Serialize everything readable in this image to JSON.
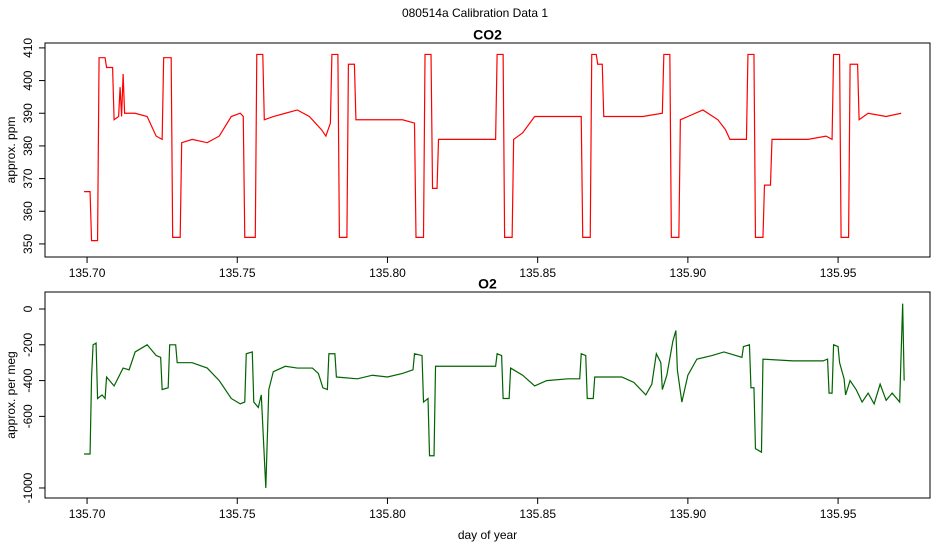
{
  "title": "080514a   Calibration Data 1",
  "chart_data": [
    {
      "type": "line",
      "title": "CO2",
      "ylabel": "approx. ppm",
      "xlim": [
        135.686,
        135.9806
      ],
      "ylim": [
        346.0,
        411.5
      ],
      "xticks": [
        {
          "value": 135.7,
          "label": "135.70"
        },
        135.75,
        {
          "value": 135.8,
          "label": "135.80"
        },
        135.85,
        {
          "value": 135.9,
          "label": "135.90"
        },
        135.95
      ],
      "yticks": [
        350,
        360,
        370,
        380,
        390,
        400,
        410
      ],
      "series": [
        {
          "name": "CO2",
          "color": "#ff0000",
          "x": [
            135.699,
            135.701,
            135.7015,
            135.7035,
            135.704,
            135.706,
            135.7065,
            135.7085,
            135.709,
            135.7105,
            135.711,
            135.7115,
            135.712,
            135.7125,
            135.716,
            135.72,
            135.723,
            135.725,
            135.7255,
            135.728,
            135.7285,
            135.731,
            135.7315,
            135.735,
            135.74,
            135.744,
            135.748,
            135.751,
            135.752,
            135.7525,
            135.756,
            135.7565,
            135.7585,
            135.759,
            135.762,
            135.766,
            135.77,
            135.774,
            135.778,
            135.7795,
            135.781,
            135.7815,
            135.7835,
            135.784,
            135.7865,
            135.787,
            135.789,
            135.7895,
            135.795,
            135.805,
            135.809,
            135.8095,
            135.812,
            135.8125,
            135.8145,
            135.815,
            135.8165,
            135.817,
            135.825,
            135.836,
            135.8365,
            135.8385,
            135.839,
            135.8415,
            135.842,
            135.845,
            135.849,
            135.86,
            135.8645,
            135.865,
            135.8675,
            135.868,
            135.8695,
            135.87,
            135.8715,
            135.872,
            135.885,
            135.8915,
            135.892,
            135.894,
            135.8945,
            135.897,
            135.8975,
            135.9,
            135.905,
            135.91,
            135.9125,
            135.914,
            135.9195,
            135.92,
            135.922,
            135.9225,
            135.925,
            135.9255,
            135.9275,
            135.928,
            135.94,
            135.946,
            135.948,
            135.9485,
            135.9505,
            135.951,
            135.9535,
            135.954,
            135.9565,
            135.957,
            135.96,
            135.966,
            135.971
          ],
          "values": [
            366,
            366,
            351,
            351,
            407,
            407,
            404,
            404,
            388,
            389,
            398,
            389,
            402,
            390,
            390,
            389,
            383,
            382,
            407,
            407,
            352,
            352,
            381,
            382,
            381,
            383,
            389,
            390,
            389,
            352,
            352,
            408,
            408,
            388,
            389,
            390,
            391,
            389,
            385,
            383,
            387,
            408,
            408,
            352,
            352,
            405,
            405,
            388,
            388,
            388,
            387,
            352,
            352,
            408,
            408,
            367,
            367,
            382,
            382,
            382,
            408,
            408,
            352,
            352,
            382,
            384,
            389,
            389,
            389,
            352,
            352,
            408,
            408,
            405,
            405,
            389,
            389,
            390,
            408,
            408,
            352,
            352,
            388,
            389,
            391,
            388,
            385,
            382,
            382,
            408,
            408,
            352,
            352,
            368,
            368,
            382,
            382,
            383,
            382,
            408,
            408,
            352,
            352,
            405,
            405,
            388,
            390,
            389,
            390
          ]
        }
      ]
    },
    {
      "type": "line",
      "title": "O2",
      "ylabel": "approx. per meg",
      "xlabel": "day of year",
      "xlim": [
        135.686,
        135.9806
      ],
      "ylim": [
        -1056,
        95
      ],
      "xticks": [
        {
          "value": 135.7,
          "label": "135.70"
        },
        135.75,
        {
          "value": 135.8,
          "label": "135.80"
        },
        135.85,
        {
          "value": 135.9,
          "label": "135.90"
        },
        135.95
      ],
      "yticks": [
        -1000,
        -600,
        -400,
        -200,
        0
      ],
      "series": [
        {
          "name": "O2",
          "color": "#006400",
          "x": [
            135.699,
            135.701,
            135.7015,
            135.702,
            135.703,
            135.7035,
            135.705,
            135.706,
            135.7065,
            135.709,
            135.712,
            135.714,
            135.716,
            135.72,
            135.723,
            135.7245,
            135.725,
            135.727,
            135.7275,
            135.7295,
            135.73,
            135.735,
            135.74,
            135.744,
            135.748,
            135.751,
            135.7525,
            135.753,
            135.755,
            135.7555,
            135.757,
            135.758,
            135.7595,
            135.7605,
            135.762,
            135.766,
            135.77,
            135.775,
            135.777,
            135.7785,
            135.78,
            135.7805,
            135.7825,
            135.783,
            135.79,
            135.795,
            135.8,
            135.805,
            135.8085,
            135.809,
            135.8115,
            135.812,
            135.8135,
            135.814,
            135.8155,
            135.816,
            135.825,
            135.836,
            135.8365,
            135.838,
            135.8385,
            135.8405,
            135.841,
            135.845,
            135.849,
            135.853,
            135.86,
            135.864,
            135.8645,
            135.866,
            135.8665,
            135.8685,
            135.869,
            135.878,
            135.882,
            135.886,
            135.888,
            135.8895,
            135.891,
            135.8915,
            135.893,
            135.895,
            135.896,
            135.8965,
            135.898,
            135.9,
            135.903,
            135.908,
            135.912,
            135.918,
            135.9185,
            135.9205,
            135.921,
            135.922,
            135.9225,
            135.9245,
            135.925,
            135.935,
            135.945,
            135.9465,
            135.947,
            135.948,
            135.9485,
            135.95,
            135.9505,
            135.952,
            135.9525,
            135.954,
            135.956,
            135.958,
            135.96,
            135.962,
            135.964,
            135.966,
            135.968,
            135.9705,
            135.9715,
            135.972
          ],
          "values": [
            -810,
            -810,
            -380,
            -200,
            -190,
            -500,
            -480,
            -500,
            -380,
            -430,
            -330,
            -340,
            -240,
            -200,
            -260,
            -270,
            -450,
            -440,
            -200,
            -200,
            -300,
            -300,
            -330,
            -400,
            -500,
            -530,
            -520,
            -250,
            -240,
            -520,
            -550,
            -480,
            -1000,
            -450,
            -350,
            -320,
            -330,
            -330,
            -360,
            -440,
            -450,
            -250,
            -250,
            -380,
            -390,
            -370,
            -380,
            -360,
            -340,
            -250,
            -260,
            -520,
            -500,
            -820,
            -820,
            -320,
            -320,
            -320,
            -250,
            -260,
            -500,
            -500,
            -330,
            -370,
            -430,
            -400,
            -390,
            -390,
            -250,
            -260,
            -500,
            -500,
            -380,
            -380,
            -410,
            -480,
            -420,
            -250,
            -300,
            -450,
            -370,
            -180,
            -120,
            -340,
            -520,
            -370,
            -280,
            -260,
            -240,
            -270,
            -210,
            -200,
            -440,
            -440,
            -780,
            -800,
            -280,
            -290,
            -290,
            -280,
            -470,
            -470,
            -200,
            -210,
            -300,
            -390,
            -480,
            -400,
            -450,
            -520,
            -470,
            -530,
            -420,
            -510,
            -470,
            -520,
            30,
            -400
          ]
        }
      ]
    }
  ]
}
